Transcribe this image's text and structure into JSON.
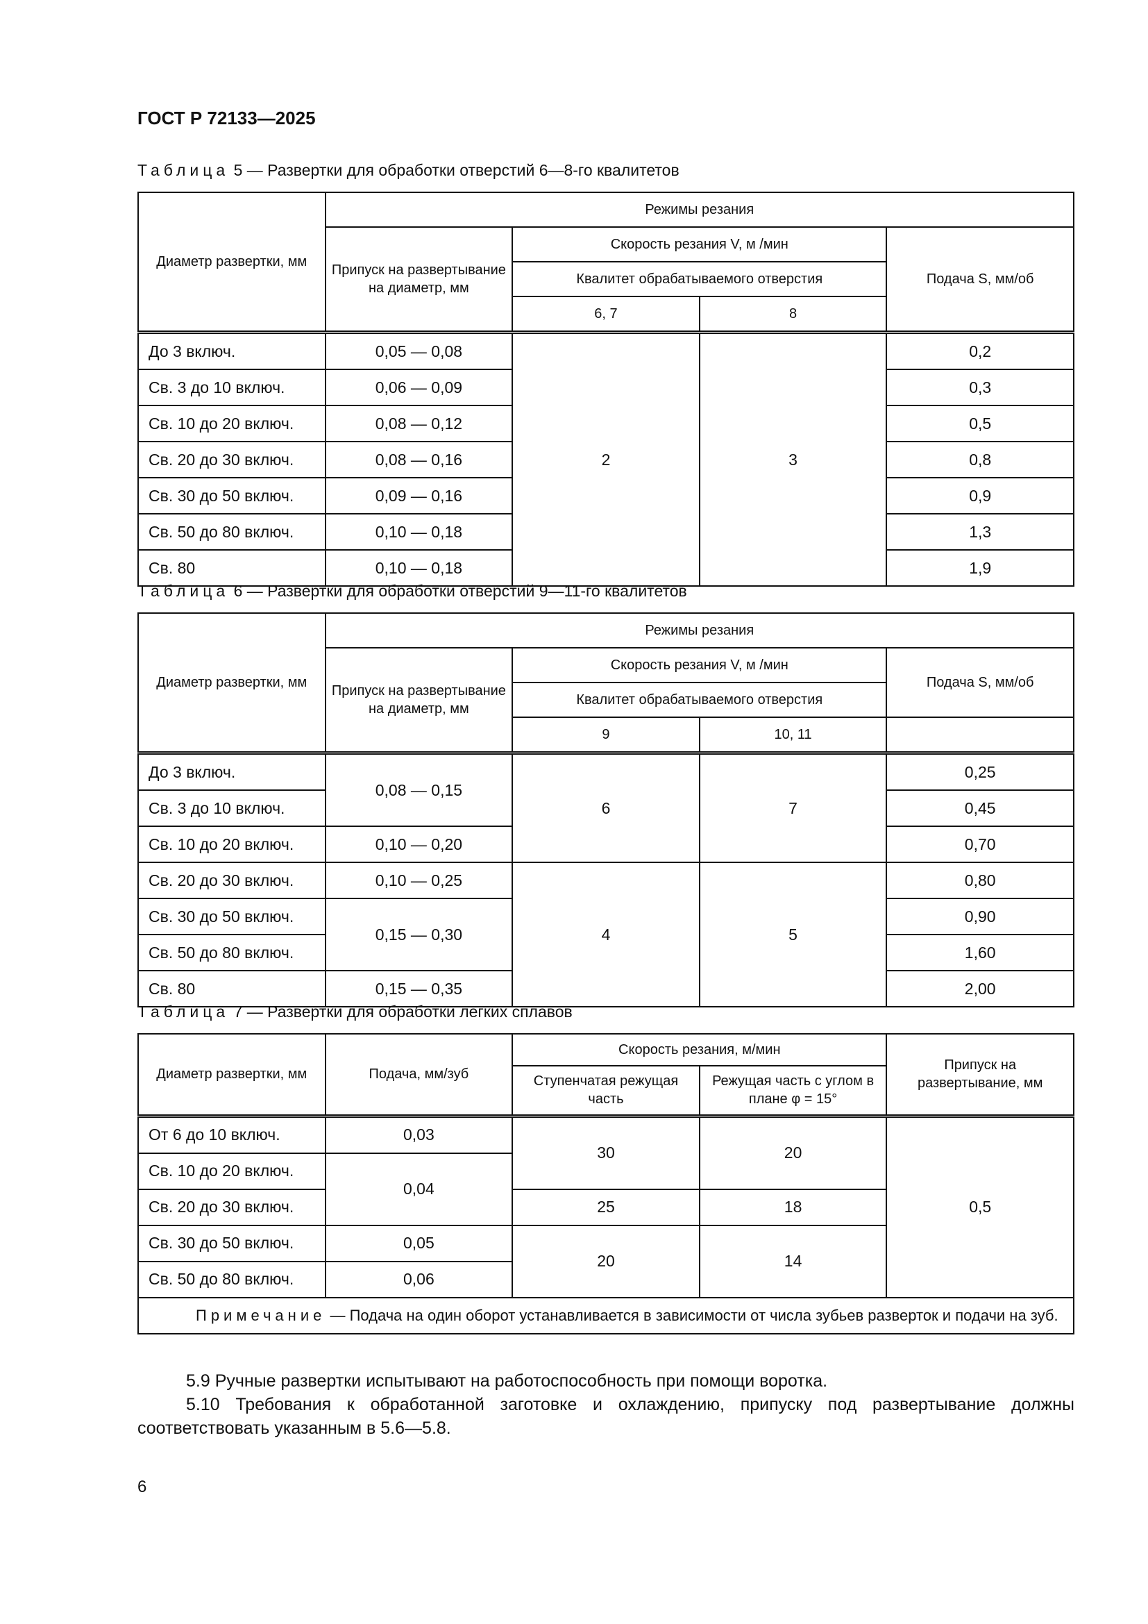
{
  "header": {
    "doc_id": "ГОСТ Р 72133—2025"
  },
  "t5": {
    "caption_word": "Таблица",
    "caption_rest": " 5 — Развертки для обработки отверстий 6—8-го квалитетов",
    "h_diam": "Диаметр развертки, мм",
    "h_modes": "Режимы резания",
    "h_allow": "Припуск на развертывание на диаметр, мм",
    "h_speed": "Скорость резания V, м /мин",
    "h_qual": "Квалитет обрабатываемого отверстия",
    "h_feed": "Подача S, мм/об",
    "h_q1": "6, 7",
    "h_q2": "8",
    "speed1": "2",
    "speed2": "3",
    "rows": [
      {
        "d": "До 3 включ.",
        "a": "0,05 — 0,08",
        "f": "0,2"
      },
      {
        "d": "Св. 3 до 10 включ.",
        "a": "0,06 — 0,09",
        "f": "0,3"
      },
      {
        "d": "Св. 10 до 20 включ.",
        "a": "0,08 — 0,12",
        "f": "0,5"
      },
      {
        "d": "Св. 20 до 30 включ.",
        "a": "0,08 — 0,16",
        "f": "0,8"
      },
      {
        "d": "Св. 30 до 50 включ.",
        "a": "0,09 — 0,16",
        "f": "0,9"
      },
      {
        "d": "Св. 50 до 80 включ.",
        "a": "0,10 — 0,18",
        "f": "1,3"
      },
      {
        "d": "Св. 80",
        "a": "0,10 — 0,18",
        "f": "1,9"
      }
    ]
  },
  "t6": {
    "caption_word": "Таблица",
    "caption_rest": " 6 — Развертки для обработки отверстий 9—11-го квалитетов",
    "h_diam": "Диаметр развертки, мм",
    "h_modes": "Режимы резания",
    "h_allow": "Припуск на развертывание на диаметр, мм",
    "h_speed": "Скорость резания V, м /мин",
    "h_qual": "Квалитет обрабатываемого отверстия",
    "h_feed": "Подача S, мм/об",
    "h_q1": "9",
    "h_q2": "10, 11",
    "diam": [
      "До 3 включ.",
      "Св. 3 до 10 включ.",
      "Св. 10 до 20 включ.",
      "Св. 20 до 30 включ.",
      "Св. 30 до 50 включ.",
      "Св. 50 до 80 включ.",
      "Св. 80"
    ],
    "allow": [
      "0,08 — 0,15",
      "0,10 — 0,20",
      "0,10 — 0,25",
      "0,15 — 0,30",
      "0,15 — 0,35"
    ],
    "speed": [
      "6",
      "7",
      "4",
      "5"
    ],
    "feed": [
      "0,25",
      "0,45",
      "0,70",
      "0,80",
      "0,90",
      "1,60",
      "2,00"
    ]
  },
  "t7": {
    "caption_word": "Таблица",
    "caption_rest": " 7 — Развертки для обработки легких сплавов",
    "h_diam": "Диаметр развертки, мм",
    "h_feed": "Подача, мм/зуб",
    "h_speed": "Скорость резания, м/мин",
    "h_step": "Ступенчатая режущая часть",
    "h_angle": "Режущая часть с углом в плане φ = 15°",
    "h_allow": "Припуск на развертывание, мм",
    "diam": [
      "От 6 до 10 включ.",
      "Св. 10 до 20 включ.",
      "Св. 20 до 30 включ.",
      "Св. 30 до 50 включ.",
      "Св. 50 до 80 включ."
    ],
    "feed": [
      "0,03",
      "0,04",
      "0,05",
      "0,06"
    ],
    "step": [
      "30",
      "25",
      "20"
    ],
    "angle": [
      "20",
      "18",
      "14"
    ],
    "allow": "0,5",
    "note_word": "Примечание",
    "note_text": " — Подача на один оборот устанавливается в зависимости от числа зубьев разверток и подачи на зуб."
  },
  "paras": [
    "5.9 Ручные развертки испытывают на работоспособность при помощи воротка.",
    "5.10 Требования к обработанной заготовке и охлаждению, припуску под развертывание должны соответствовать указанным в 5.6—5.8."
  ],
  "page_number": "6"
}
